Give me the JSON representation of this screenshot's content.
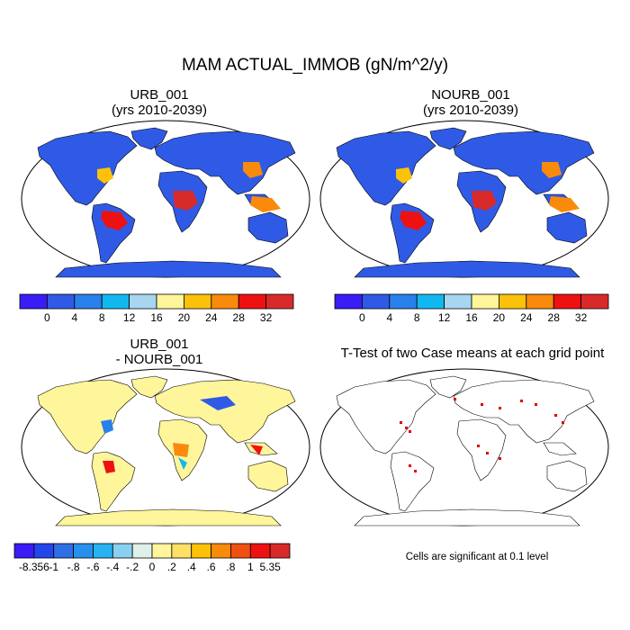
{
  "title": "MAM ACTUAL_IMMOB (gN/m^2/y)",
  "panels": {
    "urb": {
      "title": "URB_001",
      "subtitle": "(yrs 2010-2039)"
    },
    "nourb": {
      "title": "NOURB_001",
      "subtitle": "(yrs 2010-2039)"
    },
    "diff": {
      "title": "URB_001",
      "subtitle": "- NOURB_001"
    },
    "ttest": {
      "title": "T-Test of two Case means at each grid point"
    }
  },
  "colorbar_abs": {
    "colors": [
      "#3a1cf5",
      "#2f5ae6",
      "#2880ea",
      "#11b8f0",
      "#a8d6f0",
      "#fff59a",
      "#fcc20a",
      "#fa8a0c",
      "#ee1111",
      "#d92a2a"
    ],
    "labels": [
      "0",
      "4",
      "8",
      "12",
      "16",
      "20",
      "24",
      "28",
      "32"
    ]
  },
  "colorbar_diff": {
    "colors": [
      "#3a1cf5",
      "#2246ea",
      "#2f6fe6",
      "#2690ec",
      "#28b2f0",
      "#8ad0f0",
      "#dff0e8",
      "#fff59a",
      "#ffe066",
      "#fcc20a",
      "#fa8a0c",
      "#f05010",
      "#ee1111",
      "#d92a2a"
    ],
    "labels": [
      "-8.356",
      "-1",
      "-.8",
      "-.6",
      "-.4",
      "-.2",
      "0",
      ".2",
      ".4",
      ".6",
      ".8",
      "1",
      "5.35"
    ]
  },
  "significance_note": "Cells are significant at 0.1 level",
  "colors": {
    "ocean": "#ffffff",
    "land_abs": "#2f5ae6",
    "land_diff": "#fff59a",
    "significant": "#dd0000"
  }
}
